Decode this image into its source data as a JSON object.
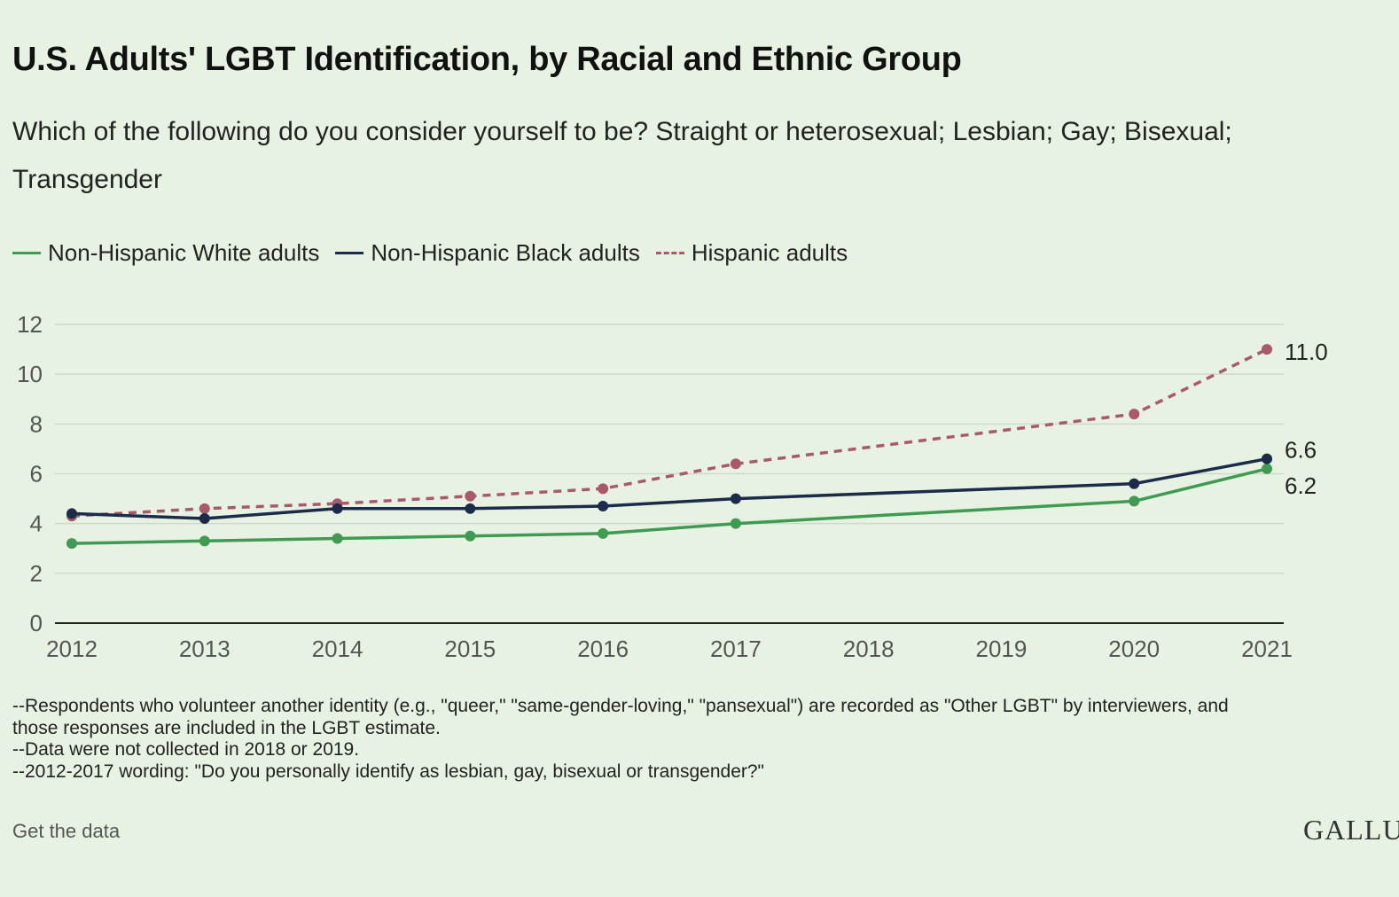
{
  "header": {
    "title": "U.S. Adults' LGBT Identification, by Racial and Ethnic Group",
    "subtitle": "Which of the following do you consider yourself to be? Straight or heterosexual; Lesbian; Gay; Bisexual; Transgender"
  },
  "chart_data": {
    "type": "line",
    "x": [
      "2012",
      "2013",
      "2014",
      "2015",
      "2016",
      "2017",
      "2018",
      "2019",
      "2020",
      "2021"
    ],
    "ylim": [
      0,
      12
    ],
    "yticks": [
      "0",
      "2",
      "4",
      "6",
      "8",
      "10",
      "12"
    ],
    "grid": true,
    "legend_position": "top-left",
    "series": [
      {
        "name": "Non-Hispanic White adults",
        "color": "#3f9a52",
        "dash": false,
        "points": [
          [
            "2012",
            3.2
          ],
          [
            "2013",
            3.3
          ],
          [
            "2014",
            3.4
          ],
          [
            "2015",
            3.5
          ],
          [
            "2016",
            3.6
          ],
          [
            "2017",
            4.0
          ],
          [
            "2020",
            4.9
          ],
          [
            "2021",
            6.2
          ]
        ],
        "end_label": "6.2"
      },
      {
        "name": "Non-Hispanic Black adults",
        "color": "#1c2b4a",
        "dash": false,
        "points": [
          [
            "2012",
            4.4
          ],
          [
            "2013",
            4.2
          ],
          [
            "2014",
            4.6
          ],
          [
            "2015",
            4.6
          ],
          [
            "2016",
            4.7
          ],
          [
            "2017",
            5.0
          ],
          [
            "2020",
            5.6
          ],
          [
            "2021",
            6.6
          ]
        ],
        "end_label": "6.6"
      },
      {
        "name": "Hispanic adults",
        "color": "#a85a6a",
        "dash": true,
        "points": [
          [
            "2012",
            4.3
          ],
          [
            "2013",
            4.6
          ],
          [
            "2014",
            4.8
          ],
          [
            "2015",
            5.1
          ],
          [
            "2016",
            5.4
          ],
          [
            "2017",
            6.4
          ],
          [
            "2020",
            8.4
          ],
          [
            "2021",
            11.0
          ]
        ],
        "end_label": "11.0"
      }
    ]
  },
  "notes": [
    "--Respondents who volunteer another identity (e.g., \"queer,\" \"same-gender-loving,\" \"pansexual\") are recorded as \"Other LGBT\" by interviewers, and",
    "those responses are included in the LGBT estimate.",
    "--Data were not collected in 2018 or 2019.",
    "--2012-2017 wording: \"Do you personally identify as lesbian, gay, bisexual or transgender?\""
  ],
  "footer": {
    "get_data_label": "Get the data",
    "brand": "GALLUP"
  }
}
